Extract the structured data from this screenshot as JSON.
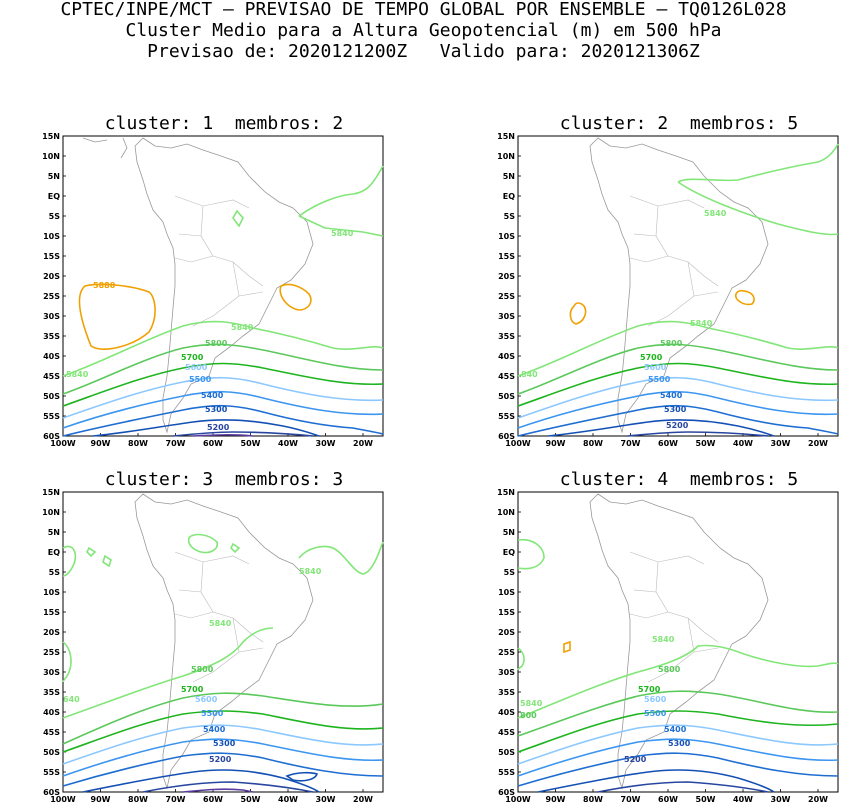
{
  "header": {
    "line1": "CPTEC/INPE/MCT – PREVISAO DE TEMPO GLOBAL POR ENSEMBLE – TQ0126L028",
    "line2": "Cluster Medio para a Altura Geopotencial (m) em 500 hPa",
    "line3_left": "Previsao de: 2020121200Z",
    "line3_right": "Valido para: 2020121306Z"
  },
  "axes": {
    "lat_labels": [
      "15N",
      "10N",
      "5N",
      "EQ",
      "5S",
      "10S",
      "15S",
      "20S",
      "25S",
      "30S",
      "35S",
      "40S",
      "45S",
      "50S",
      "55S",
      "60S"
    ],
    "lon_labels": [
      "100W",
      "90W",
      "80W",
      "70W",
      "60W",
      "50W",
      "40W",
      "30W",
      "20W"
    ]
  },
  "contour_colors": {
    "5880": "#f0a000",
    "5840": "#82e678",
    "5800": "#5ac85a",
    "5700": "#1eb41e",
    "5600": "#8cc8ff",
    "5500": "#3c96f0",
    "5400": "#1e6ed2",
    "5300": "#1450b4",
    "5200": "#2846a0",
    "5100": "#5a3ca0"
  },
  "panels": [
    {
      "cluster_label": "cluster:",
      "cluster": "1",
      "members_label": "membros:",
      "members": "2",
      "labels": [
        "5880",
        "5840",
        "5840",
        "5840",
        "5800",
        "5700",
        "5600",
        "5500",
        "5400",
        "5300",
        "5200"
      ]
    },
    {
      "cluster_label": "cluster:",
      "cluster": "2",
      "members_label": "membros:",
      "members": "5",
      "labels": [
        "5840",
        "5840",
        "840",
        "5800",
        "5700",
        "5600",
        "5500",
        "5400",
        "5300",
        "5200"
      ]
    },
    {
      "cluster_label": "cluster:",
      "cluster": "3",
      "members_label": "membros:",
      "members": "3",
      "labels": [
        "5840",
        "5840",
        "640",
        "5800",
        "5700",
        "5600",
        "5500",
        "5400",
        "5300",
        "5200"
      ]
    },
    {
      "cluster_label": "cluster:",
      "cluster": "4",
      "members_label": "membros:",
      "members": "5",
      "labels": [
        "5840",
        "5840",
        "800",
        "5800",
        "5700",
        "5600",
        "5500",
        "5400",
        "5300",
        "5200"
      ]
    }
  ]
}
